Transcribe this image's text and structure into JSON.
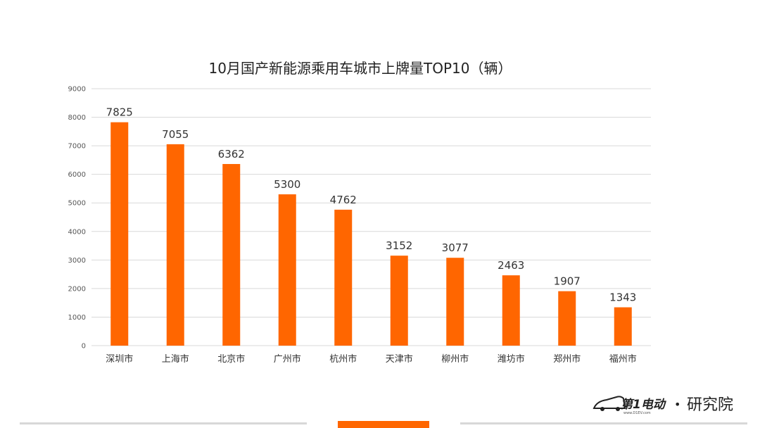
{
  "chart_data": {
    "type": "bar",
    "title": "10月国产新能源乘用车城市上牌量TOP10（辆）",
    "categories": [
      "深圳市",
      "上海市",
      "北京市",
      "广州市",
      "杭州市",
      "天津市",
      "柳州市",
      "潍坊市",
      "郑州市",
      "福州市"
    ],
    "values": [
      7825,
      7055,
      6362,
      5300,
      4762,
      3152,
      3077,
      2463,
      1907,
      1343
    ],
    "ylim": [
      0,
      9000
    ],
    "yticks": [
      0,
      1000,
      2000,
      3000,
      4000,
      5000,
      6000,
      7000,
      8000,
      9000
    ],
    "grid": true,
    "bar_color": "#FF6600",
    "data_labels": true
  },
  "branding": {
    "logo_text": "第1电动",
    "logo_url_text": "www.D1EV.com",
    "separator": "•",
    "institute": "研究院"
  },
  "colors": {
    "accent": "#FF6600",
    "footer_line": "#D8D8D8"
  }
}
